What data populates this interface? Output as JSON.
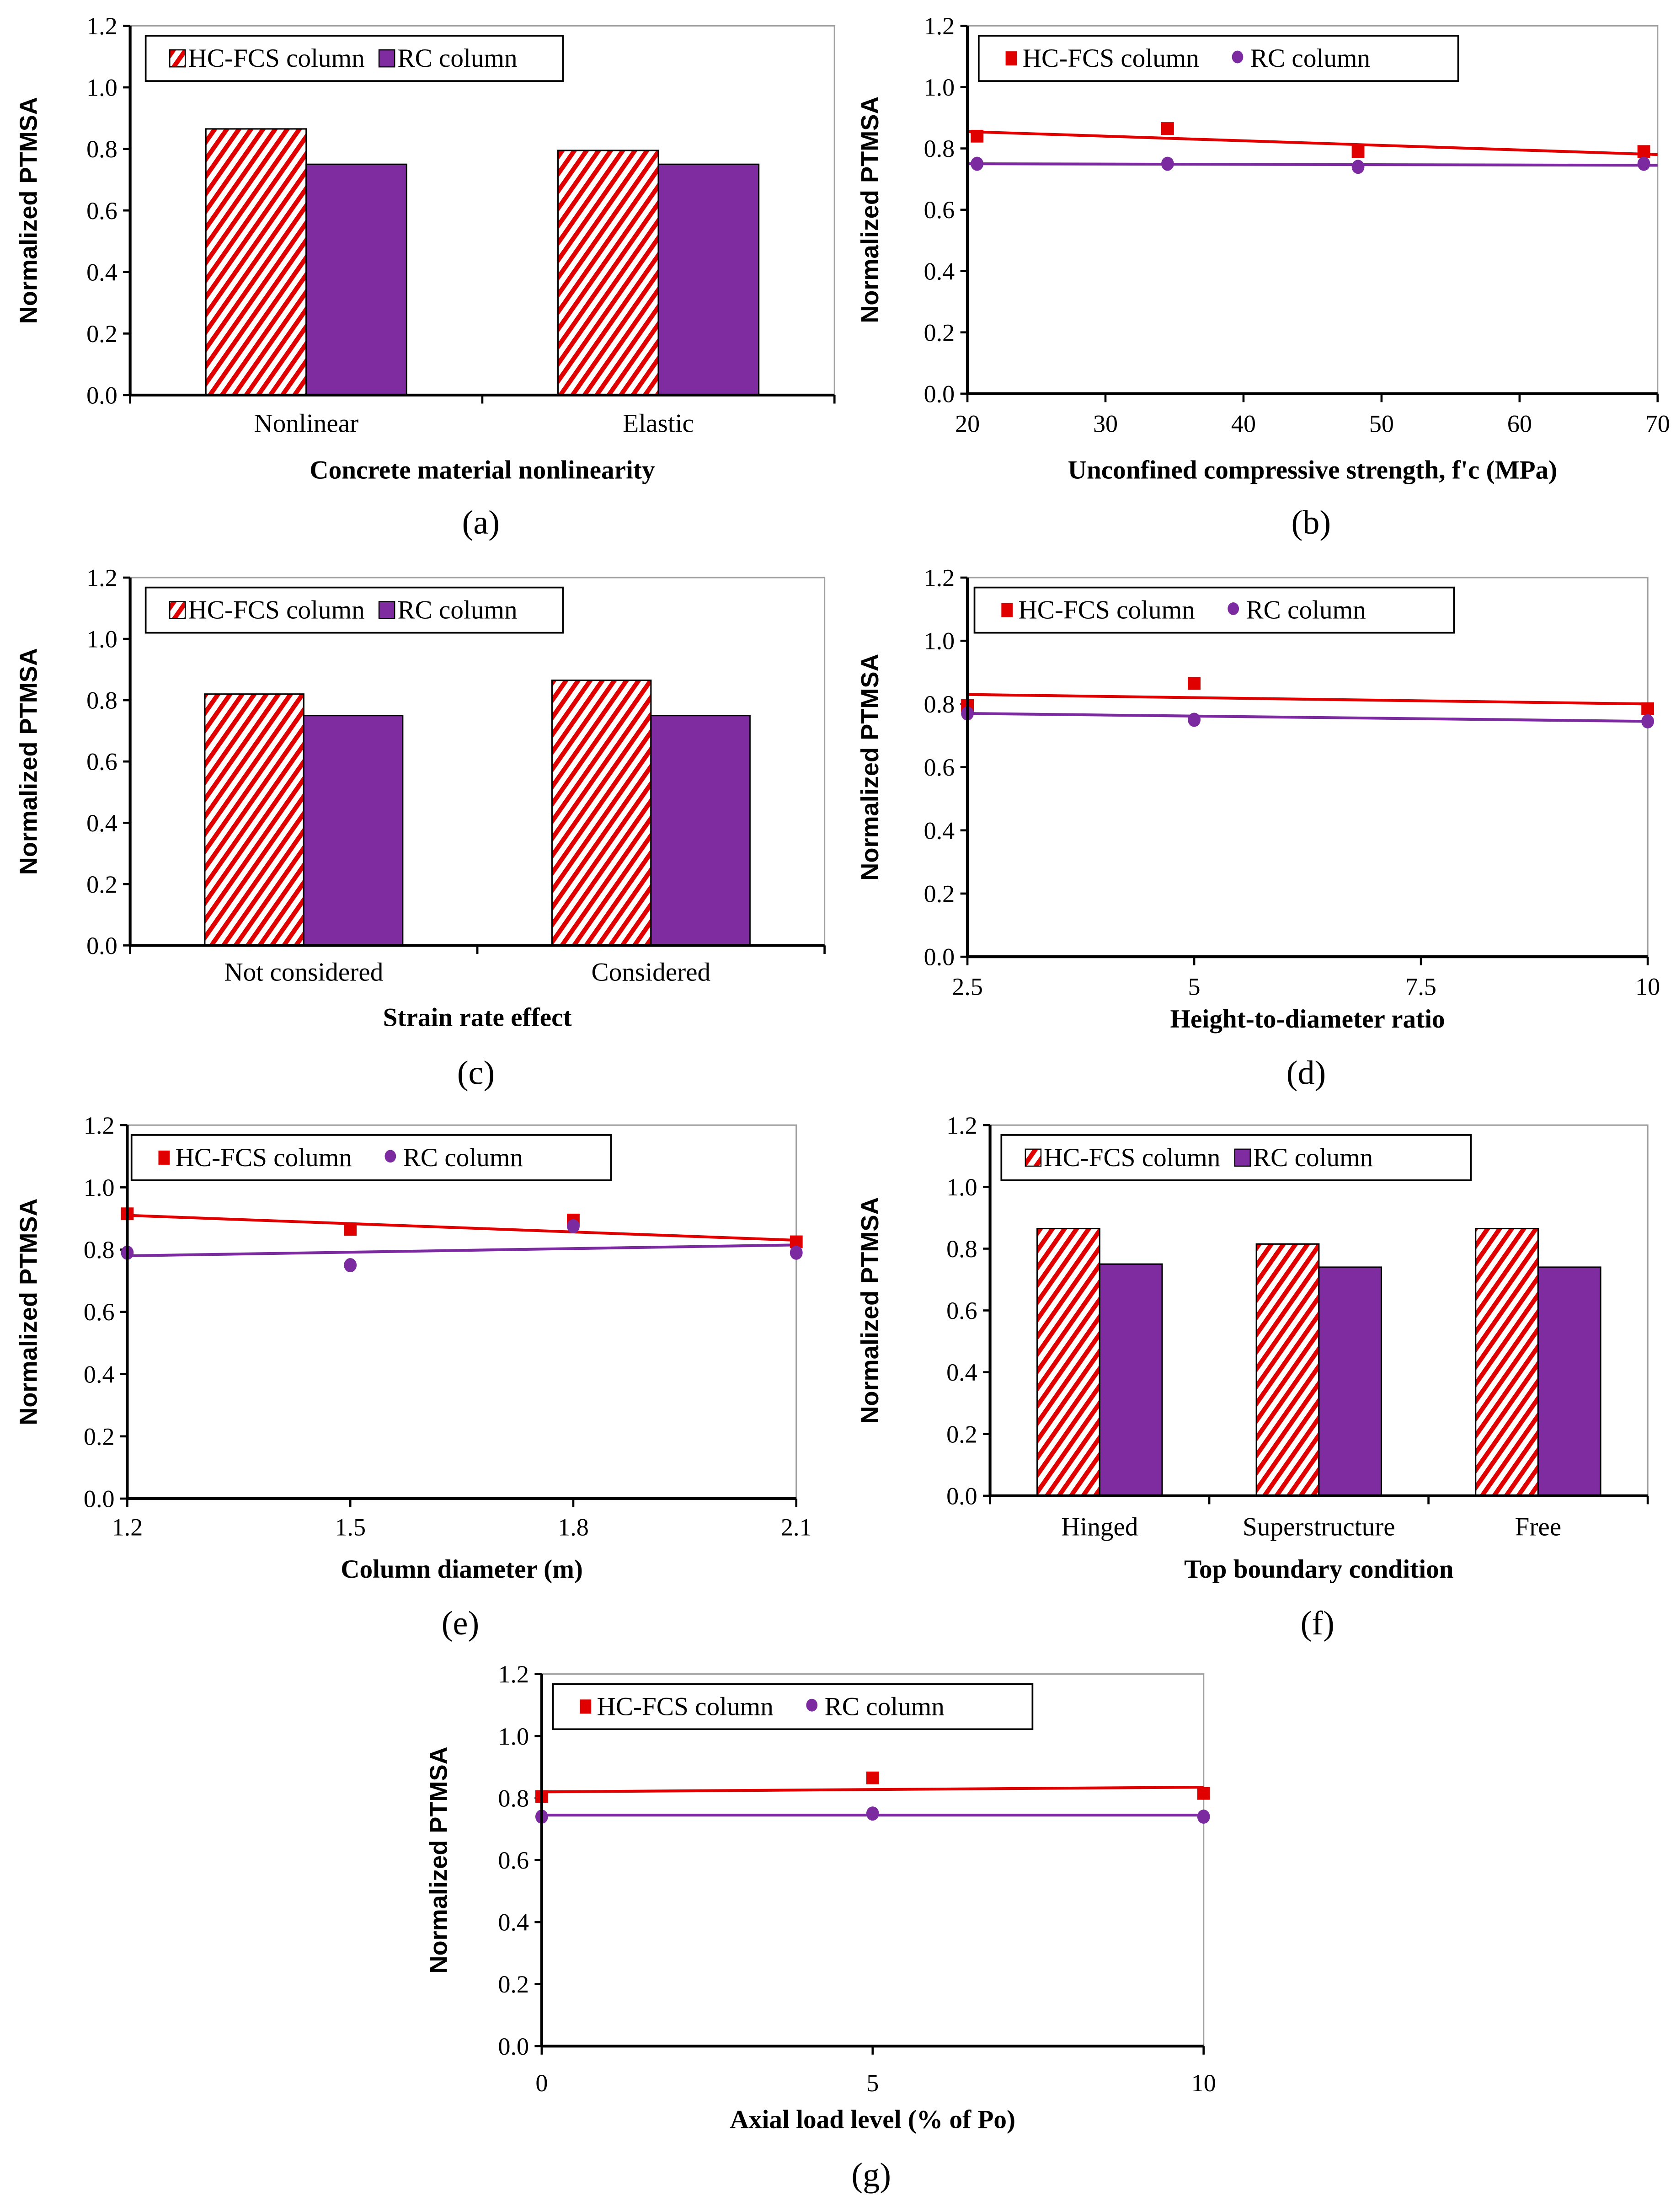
{
  "colors": {
    "hcfcs": "#e00000",
    "rc": "#7b2b9f",
    "rc_bar": "#7f2ca0",
    "axis": "#000000",
    "frame": "#a0a0a0"
  },
  "legend": {
    "hcfcs": "HC-FCS column",
    "rc": "RC column"
  },
  "chart_data": [
    {
      "id": "a",
      "panel_label": "(a)",
      "type": "bar",
      "title": "",
      "xlabel": "Concrete  material  nonlinearity",
      "ylabel": "Normalized  PTMSA",
      "ylim": [
        0,
        1.2
      ],
      "yticks": [
        "0.0",
        "0.2",
        "0.4",
        "0.6",
        "0.8",
        "1.0",
        "1.2"
      ],
      "categories": [
        "Nonlinear",
        "Elastic"
      ],
      "series": [
        {
          "name": "HC-FCS column",
          "values": [
            0.865,
            0.795
          ]
        },
        {
          "name": "RC column",
          "values": [
            0.75,
            0.75
          ]
        }
      ],
      "legend_position": "top-left",
      "grid": false
    },
    {
      "id": "b",
      "panel_label": "(b)",
      "type": "scatter",
      "xlabel": "Unconfined  compressive  strength, f'c (MPa)",
      "ylabel": "Normalized  PTMSA",
      "xlim": [
        20,
        70
      ],
      "xticks": [
        "20",
        "30",
        "40",
        "50",
        "60",
        "70"
      ],
      "ylim": [
        0,
        1.2
      ],
      "yticks": [
        "0.0",
        "0.2",
        "0.4",
        "0.6",
        "0.8",
        "1.0",
        "1.2"
      ],
      "series": [
        {
          "name": "HC-FCS column",
          "x": [
            20.7,
            34.5,
            48.3,
            69.0
          ],
          "y": [
            0.84,
            0.865,
            0.79,
            0.79
          ],
          "trend": [
            0.855,
            0.78
          ]
        },
        {
          "name": "RC column",
          "x": [
            20.7,
            34.5,
            48.3,
            69.0
          ],
          "y": [
            0.75,
            0.75,
            0.74,
            0.75
          ],
          "trend": [
            0.75,
            0.745
          ]
        }
      ],
      "legend_position": "top-left",
      "grid": false
    },
    {
      "id": "c",
      "panel_label": "(c)",
      "type": "bar",
      "xlabel": "Strain rate effect",
      "ylabel": "Normalized  PTMSA",
      "ylim": [
        0,
        1.2
      ],
      "yticks": [
        "0.0",
        "0.2",
        "0.4",
        "0.6",
        "0.8",
        "1.0",
        "1.2"
      ],
      "categories": [
        "Not considered",
        "Considered"
      ],
      "series": [
        {
          "name": "HC-FCS column",
          "values": [
            0.82,
            0.865
          ]
        },
        {
          "name": "RC column",
          "values": [
            0.75,
            0.75
          ]
        }
      ],
      "legend_position": "top-left",
      "grid": false
    },
    {
      "id": "d",
      "panel_label": "(d)",
      "type": "scatter",
      "xlabel": "Height-to-diameter ratio",
      "ylabel": "Normalized  PTMSA",
      "xlim": [
        2.5,
        10
      ],
      "xticks": [
        "2.5",
        "5",
        "7.5",
        "10"
      ],
      "ylim": [
        0,
        1.2
      ],
      "yticks": [
        "0.0",
        "0.2",
        "0.4",
        "0.6",
        "0.8",
        "1.0",
        "1.2"
      ],
      "series": [
        {
          "name": "HC-FCS column",
          "x": [
            2.5,
            5,
            10
          ],
          "y": [
            0.795,
            0.865,
            0.785
          ],
          "trend": [
            0.83,
            0.8
          ]
        },
        {
          "name": "RC column",
          "x": [
            2.5,
            5,
            10
          ],
          "y": [
            0.77,
            0.75,
            0.745
          ],
          "trend": [
            0.77,
            0.745
          ]
        }
      ],
      "legend_position": "top-left",
      "grid": false
    },
    {
      "id": "e",
      "panel_label": "(e)",
      "type": "scatter",
      "xlabel": "Column diameter (m)",
      "ylabel": "Normalized  PTMSA",
      "xlim": [
        1.2,
        2.1
      ],
      "xticks": [
        "1.2",
        "1.5",
        "1.8",
        "2.1"
      ],
      "ylim": [
        0,
        1.2
      ],
      "yticks": [
        "0.0",
        "0.2",
        "0.4",
        "0.6",
        "0.8",
        "1.0",
        "1.2"
      ],
      "series": [
        {
          "name": "HC-FCS column",
          "x": [
            1.2,
            1.5,
            1.8,
            2.1
          ],
          "y": [
            0.915,
            0.865,
            0.895,
            0.825
          ],
          "trend": [
            0.91,
            0.83
          ]
        },
        {
          "name": "RC column",
          "x": [
            1.2,
            1.5,
            1.8,
            2.1
          ],
          "y": [
            0.79,
            0.75,
            0.875,
            0.79
          ],
          "trend": [
            0.78,
            0.815
          ]
        }
      ],
      "legend_position": "top-left",
      "grid": false
    },
    {
      "id": "f",
      "panel_label": "(f)",
      "type": "bar",
      "xlabel": "Top  boundary  condition",
      "ylabel": "Normalized  PTMSA",
      "ylim": [
        0,
        1.2
      ],
      "yticks": [
        "0.0",
        "0.2",
        "0.4",
        "0.6",
        "0.8",
        "1.0",
        "1.2"
      ],
      "categories": [
        "Hinged",
        "Superstructure",
        "Free"
      ],
      "series": [
        {
          "name": "HC-FCS column",
          "values": [
            0.865,
            0.815,
            0.865
          ]
        },
        {
          "name": "RC column",
          "values": [
            0.75,
            0.74,
            0.74
          ]
        }
      ],
      "legend_position": "top-left",
      "grid": false
    },
    {
      "id": "g",
      "panel_label": "(g)",
      "type": "scatter",
      "xlabel": "Axial load level (% of Po)",
      "ylabel": "Normalized  PTMSA",
      "xlim": [
        0,
        10
      ],
      "xticks": [
        "0",
        "5",
        "10"
      ],
      "ylim": [
        0,
        1.2
      ],
      "yticks": [
        "0.0",
        "0.2",
        "0.4",
        "0.6",
        "0.8",
        "1.0",
        "1.2"
      ],
      "series": [
        {
          "name": "HC-FCS column",
          "x": [
            0,
            5,
            10
          ],
          "y": [
            0.805,
            0.865,
            0.815
          ],
          "trend": [
            0.82,
            0.835
          ]
        },
        {
          "name": "RC column",
          "x": [
            0,
            5,
            10
          ],
          "y": [
            0.74,
            0.75,
            0.74
          ],
          "trend": [
            0.745,
            0.745
          ]
        }
      ],
      "legend_position": "top-left",
      "grid": false
    }
  ]
}
